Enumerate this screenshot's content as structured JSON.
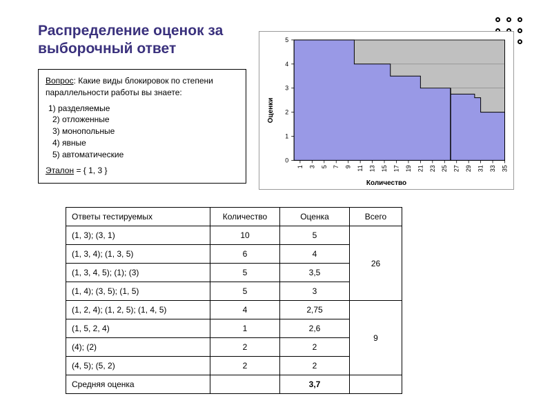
{
  "title_color": "#3a317d",
  "title": "Распределение оценок за выборочный ответ",
  "question": {
    "label": "Вопрос",
    "text": ": Какие виды блокировок по степени параллельности работы вы знаете:",
    "options": [
      "1) разделяемые",
      "2) отложенные",
      "3) монопольные",
      "4) явные",
      "5) автоматические"
    ],
    "etalon_label": "Эталон",
    "etalon_value": " = { 1, 3 }"
  },
  "chart": {
    "type": "area-step",
    "bg": "#ffffff",
    "plot_bg": "#c0c0c0",
    "fill_color": "#9999e6",
    "grid_color": "#808080",
    "border_color": "#000000",
    "text_color": "#000000",
    "xlabel": "Количество",
    "ylabel": "Оценки",
    "x_ticks": [
      1,
      3,
      5,
      7,
      9,
      11,
      13,
      15,
      17,
      19,
      21,
      23,
      25,
      27,
      29,
      31,
      33,
      35
    ],
    "y_ticks": [
      0,
      1,
      2,
      3,
      4,
      5
    ],
    "xlim": [
      0,
      35
    ],
    "ylim": [
      0,
      5
    ],
    "series": [
      {
        "x": 0,
        "y": 5
      },
      {
        "x": 10,
        "y": 5
      },
      {
        "x": 10,
        "y": 4
      },
      {
        "x": 16,
        "y": 4
      },
      {
        "x": 16,
        "y": 3.5
      },
      {
        "x": 21,
        "y": 3.5
      },
      {
        "x": 21,
        "y": 3
      },
      {
        "x": 26,
        "y": 3
      },
      {
        "x": 26,
        "y": 2.75
      },
      {
        "x": 30,
        "y": 2.75
      },
      {
        "x": 30,
        "y": 2.6
      },
      {
        "x": 31,
        "y": 2.6
      },
      {
        "x": 31,
        "y": 2
      },
      {
        "x": 35,
        "y": 2
      }
    ],
    "divider_x": 26,
    "tick_fontsize": 9,
    "label_fontsize": 10
  },
  "table": {
    "headers": [
      "Ответы тестируемых",
      "Количество",
      "Оценка",
      "Всего"
    ],
    "rows": [
      {
        "ans": "(1, 3);  (3, 1)",
        "qty": "10",
        "score": "5",
        "group": 0
      },
      {
        "ans": "(1, 3, 4);  (1, 3, 5)",
        "qty": "6",
        "score": "4",
        "group": 0
      },
      {
        "ans": "(1, 3, 4, 5);  (1);  (3)",
        "qty": "5",
        "score": "3,5",
        "group": 0
      },
      {
        "ans": "(1, 4);  (3, 5);  (1, 5)",
        "qty": "5",
        "score": "3",
        "group": 0
      },
      {
        "ans": "(1, 2, 4);  (1, 2, 5);  (1, 4, 5)",
        "qty": "4",
        "score": "2,75",
        "group": 1
      },
      {
        "ans": "(1, 5, 2, 4)",
        "qty": "1",
        "score": "2,6",
        "group": 1
      },
      {
        "ans": "(4);  (2)",
        "qty": "2",
        "score": "2",
        "group": 1
      },
      {
        "ans": "(4, 5);  (5, 2)",
        "qty": "2",
        "score": "2",
        "group": 1
      }
    ],
    "totals": [
      "26",
      "9"
    ],
    "avg_label": "Средняя оценка",
    "avg_value": "3,7"
  }
}
